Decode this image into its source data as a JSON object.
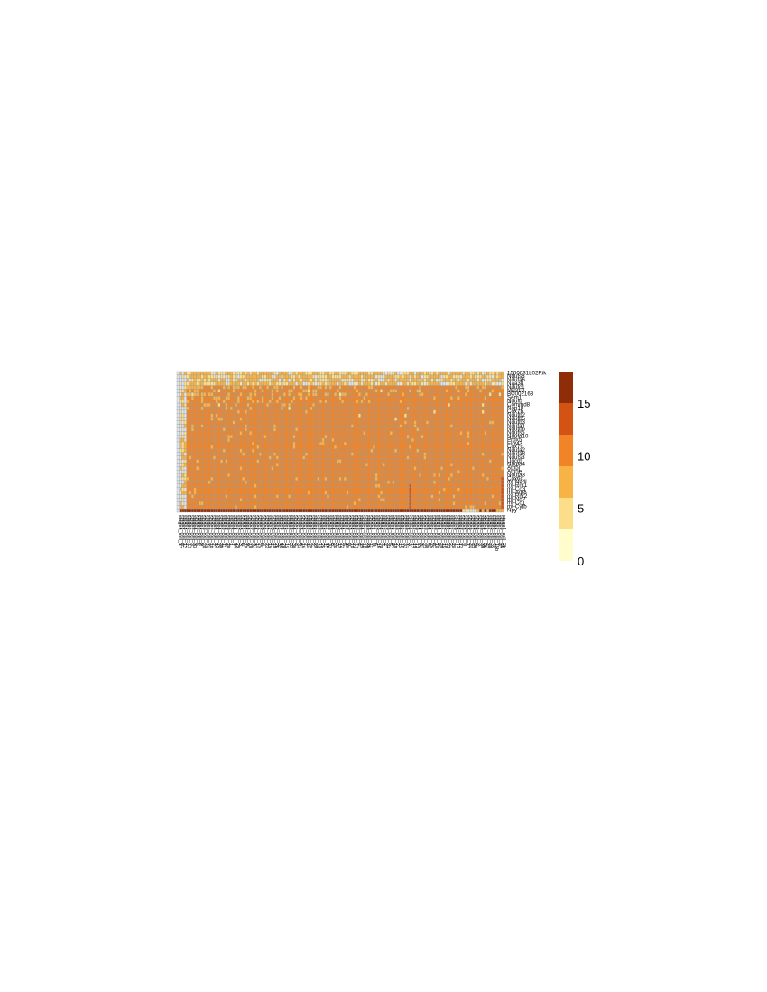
{
  "chart_data": {
    "type": "heatmap",
    "title": "",
    "xlabel": "",
    "ylabel": "",
    "rows": [
      "1500031L02Rik",
      "Ndufs6",
      "Ndufa6",
      "Naa38",
      "Ndufc1",
      "Mrpl18",
      "BC002163",
      "Sem1",
      "Ndufb",
      "Commd8",
      "Nop10",
      "Cox7b",
      "Ndufb2",
      "Ndufb5",
      "Ndufb3",
      "Ndufa1",
      "Ndufb6",
      "Ndufs5",
      "Ndufa10",
      "Prdx5",
      "Elovl3",
      "Cox7c",
      "Ndufa2",
      "Ndufa8",
      "Ndufs3",
      "Uqcrb",
      "Ndufa4",
      "Atp5j",
      "Atp5e",
      "Ndufa3",
      "Cox6c",
      "mt-Nd4l",
      "mt-Rnr1",
      "mt-Co3",
      "mt-Atp8",
      "mt-Rnr2",
      "mt-Nd2",
      "mt-Co1",
      "mt-Cytb",
      "Npy"
    ],
    "columns": [
      "stage3_cell_17",
      "stage1_cell_8",
      "stage4_cell_12",
      "stage1_cell_22",
      "stage1_cell_13",
      "stage2_cell_3",
      "stage4_cell_33",
      "stage2_cell_5",
      "stage4_cell_6",
      "stage1_cell_9",
      "stage3_cell_28",
      "stage3_cell_25",
      "stage1_cell_2",
      "stage2_cell_18",
      "stage2_cell_21",
      "stage4_cell_14",
      "stage4_cell_24",
      "stage1_cell_30",
      "stage3_cell_11",
      "stage2_cell_4",
      "stage3_cell_20",
      "stage2_cell_1",
      "stage4_cell_7",
      "stage1_cell_16",
      "stage2_cell_29",
      "stage3_cell_31",
      "stage1_cell_6",
      "stage4_cell_19",
      "stage2_cell_9",
      "stage1_cell_10",
      "stage3_cell_34",
      "stage4_cell_3",
      "stage2_cell_14",
      "stage1_cell_25",
      "stage3_cell_8",
      "stage4_cell_27",
      "stage2_cell_22",
      "stage1_cell_19",
      "stage3_cell_2",
      "stage4_cell_10",
      "stage2_cell_26",
      "stage1_cell_32",
      "stage3_cell_12",
      "stage4_cell_20",
      "stage1_cell_15",
      "stage2_cell_7",
      "stage3_cell_23",
      "stage4_cell_30",
      "stage1_cell_4",
      "stage2_cell_33",
      "stage3_cell_6",
      "stage4_cell_16",
      "stage1_cell_27",
      "stage2_cell_11",
      "stage3_cell_29",
      "stage4_cell_2",
      "stage1_cell_20",
      "stage2_cell_24",
      "stage3_cell_15",
      "stage4_cell_25",
      "stage1_cell_11",
      "stage2_cell_16",
      "stage3_cell_32",
      "stage4_cell_8",
      "stage1_cell_28",
      "stage2_cell_2",
      "stage3_cell_19",
      "stage4_cell_22",
      "stage1_cell_5",
      "stage2_cell_30",
      "stage3_cell_9",
      "stage4_cell_18",
      "stage1_cell_23",
      "stage2_cell_13",
      "stage3_cell_4",
      "stage4_cell_29",
      "stage1_cell_14",
      "stage2_cell_20",
      "stage3_cell_26",
      "stage4_cell_11",
      "stage1_cell_31",
      "stage2_cell_6",
      "stage3_cell_16",
      "stage4_cell_28",
      "stage1_cell_7",
      "stage2_cell_27",
      "stage3_cell_33",
      "stage4_cell_5",
      "stage1_cell_24",
      "stage2_cell_10",
      "stage3_cell_21",
      "stage4_cell_15",
      "stage1_cell_18",
      "stage2_cell_32",
      "stage3_cell_7",
      "stage4_cell_31",
      "stage1_cell_12",
      "stage2_cell_19",
      "stage3_cell_13",
      "stage4_cell_26",
      "stage1_cell_3",
      "stage2_cell_23",
      "stage3_cell_30",
      "stage4_cell_4",
      "stage1_cell_26",
      "stage2_cell_8",
      "stage3_cell_18",
      "stage4_cell_21",
      "stage1_cell_29",
      "stage2_cell_15",
      "stage3_cell_10",
      "stage4_cell_23",
      "stage1_cell_21",
      "stage2_cell_28",
      "stage3_cell_1",
      "stage4_cell_13",
      "stage2_cell_12",
      "stage3_cell_3",
      "stage4_cell_9",
      "stage3_cell_17",
      "stage3_cell_44",
      "stage2_cell_43",
      "stage1_cell_38",
      "stage4_cell_41",
      "stage2_cell_37",
      "stage3_cell_39",
      "stage4_cell_36",
      "stage1_cell_42",
      "stage2_cell_40",
      "stage3_cell_35",
      "stage4_cell_45",
      "stage1_cell_15b",
      "stage2_cell_47",
      "stage3_cell_46",
      "stage4_cell_2b"
    ],
    "value_range": [
      0,
      18
    ],
    "missing_color": "#dde4ec",
    "cell_border_color": "#9a9a9a",
    "legend": {
      "position": "right",
      "ticks": [
        0,
        5,
        10,
        15
      ],
      "bins": [
        {
          "from": 0,
          "to": 3,
          "color": "#fffdcb"
        },
        {
          "from": 3,
          "to": 6,
          "color": "#fbdd8a"
        },
        {
          "from": 6,
          "to": 9,
          "color": "#f7b345"
        },
        {
          "from": 9,
          "to": 12,
          "color": "#f08426"
        },
        {
          "from": 12,
          "to": 15,
          "color": "#d35315"
        },
        {
          "from": 15,
          "to": 18,
          "color": "#8f2d09"
        }
      ]
    }
  }
}
